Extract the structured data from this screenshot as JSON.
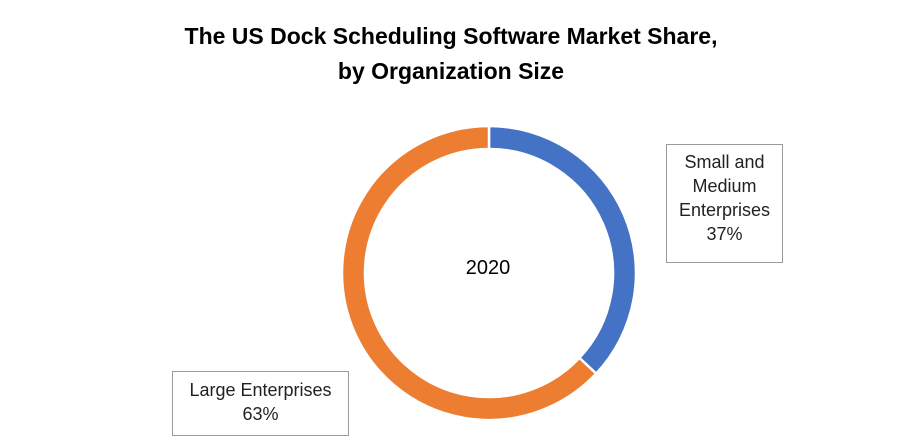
{
  "chart_data": {
    "type": "pie",
    "subtype": "donut",
    "title_lines": [
      "The US Dock Scheduling Software Market Share,",
      "by Organization Size"
    ],
    "center_label": "2020",
    "slices": [
      {
        "label_lines": [
          "Small and",
          "Medium",
          "Enterprises"
        ],
        "value": 37,
        "value_label": "37%",
        "color": "#4472C4"
      },
      {
        "label_lines": [
          "Large Enterprises"
        ],
        "value": 63,
        "value_label": "63%",
        "color": "#ED7D31"
      }
    ],
    "start_angle_deg": 0,
    "direction": "clockwise",
    "legend": "none"
  }
}
